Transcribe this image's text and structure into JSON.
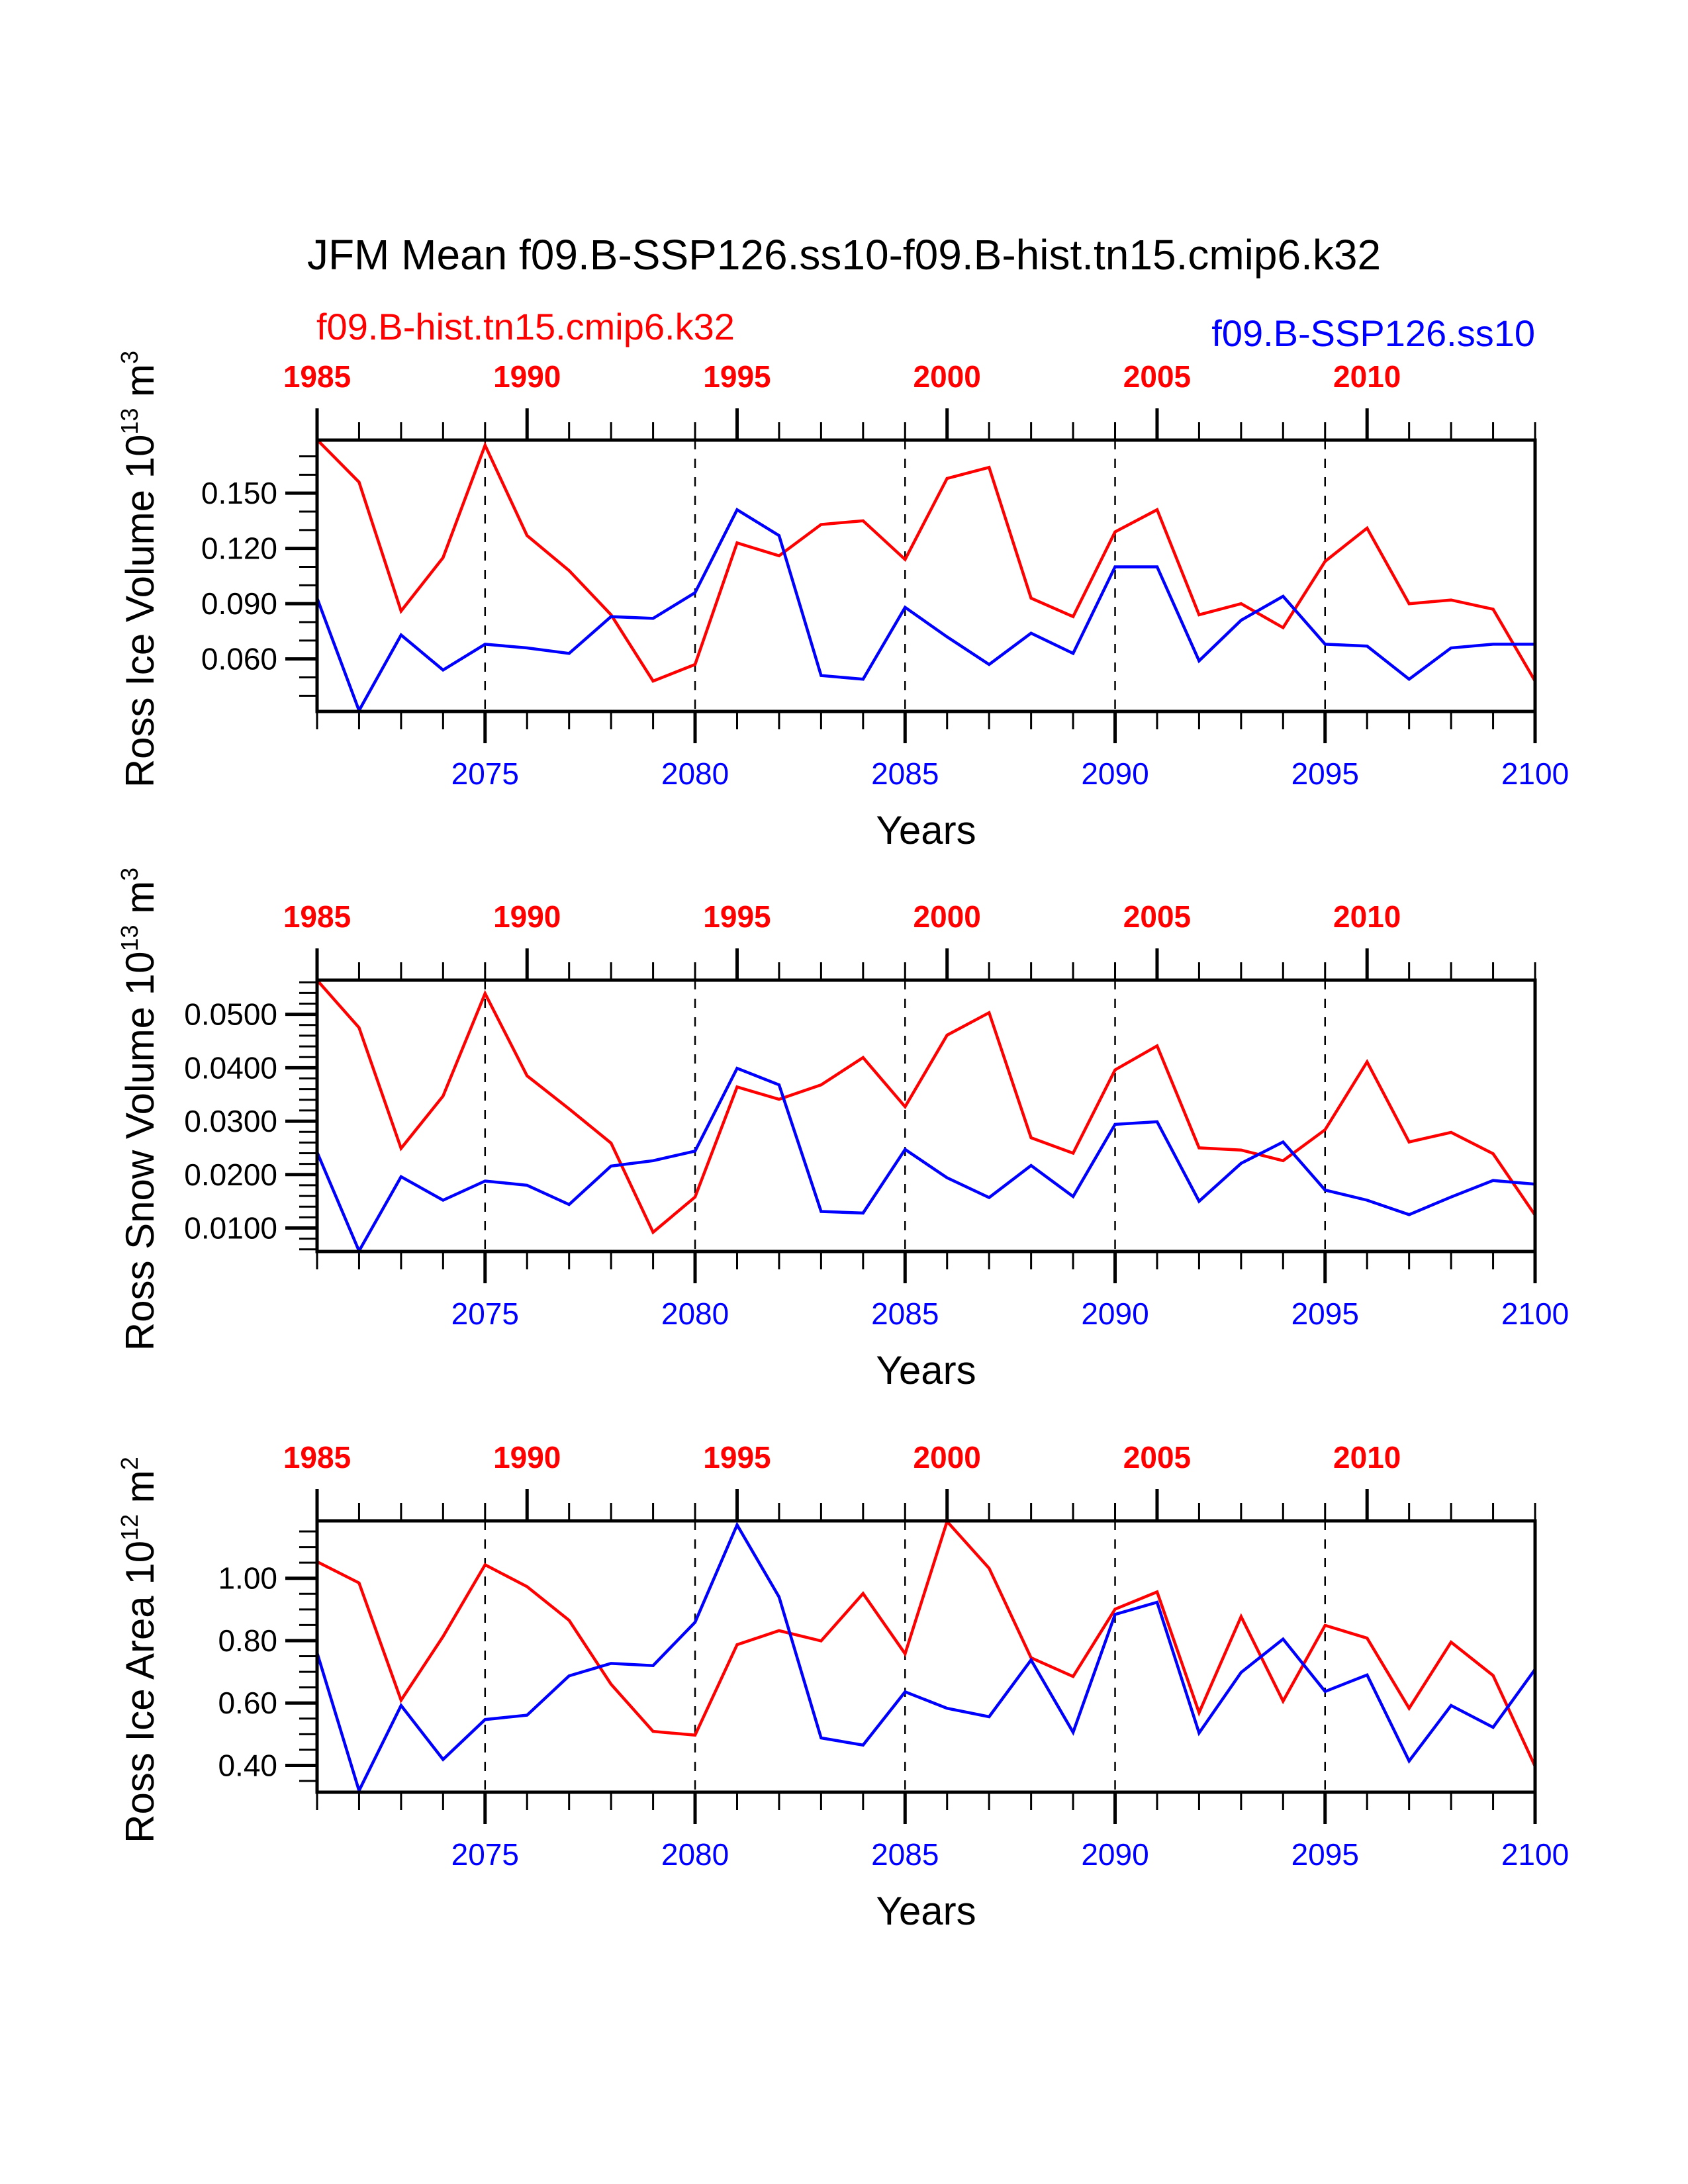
{
  "title": "JFM Mean f09.B-SSP126.ss10-f09.B-hist.tn15.cmip6.k32",
  "legend": {
    "hist_label": "f09.B-hist.tn15.cmip6.k32",
    "ssp_label": "f09.B-SSP126.ss10",
    "hist_color": "#ff0000",
    "ssp_color": "#0000ff"
  },
  "chart_data": [
    {
      "type": "line",
      "title": "",
      "ylabel": "Ross Ice Volume 10^13 m^3",
      "ylabel_main": "Ross Ice Volume 10",
      "ylabel_exp": "13",
      "ylabel_unit": " m",
      "ylabel_unit_exp": "3",
      "xlabel": "Years",
      "ylim": [
        0.0315,
        0.1788
      ],
      "yticks": [
        0.06,
        0.09,
        0.12,
        0.15
      ],
      "ytick_labels": [
        "0.060",
        "0.090",
        "0.120",
        "0.150"
      ],
      "yminor_step": 0.01,
      "xlim": [
        2071,
        2100
      ],
      "xticks_bottom": [
        2075,
        2080,
        2085,
        2090,
        2095,
        2100
      ],
      "xticks_top_labels": [
        "1985",
        "1990",
        "1995",
        "2000",
        "2005",
        "2010"
      ],
      "xticks_top_at": [
        2071,
        2076,
        2081,
        2086,
        2091,
        2096
      ],
      "grid": "vertical dashed at bottom major ticks",
      "x": [
        2071,
        2072,
        2073,
        2074,
        2075,
        2076,
        2077,
        2078,
        2079,
        2080,
        2081,
        2082,
        2083,
        2084,
        2085,
        2086,
        2087,
        2088,
        2089,
        2090,
        2091,
        2092,
        2093,
        2094,
        2095,
        2096,
        2097,
        2098,
        2099,
        2100
      ],
      "x_top": [
        1985,
        1986,
        1987,
        1988,
        1989,
        1990,
        1991,
        1992,
        1993,
        1994,
        1995,
        1996,
        1997,
        1998,
        1999,
        2000,
        2001,
        2002,
        2003,
        2004,
        2005,
        2006,
        2007,
        2008,
        2009,
        2010,
        2011,
        2012,
        2013,
        2014
      ],
      "series": [
        {
          "name": "f09.B-hist.tn15.cmip6.k32",
          "color": "#ff0000",
          "values": [
            0.179,
            0.156,
            0.086,
            0.115,
            0.176,
            0.127,
            0.108,
            0.084,
            0.048,
            0.057,
            0.123,
            0.116,
            0.133,
            0.135,
            0.114,
            0.158,
            0.164,
            0.093,
            0.083,
            0.129,
            0.141,
            0.084,
            0.09,
            0.077,
            0.113,
            0.131,
            0.09,
            0.092,
            0.087,
            0.048
          ]
        },
        {
          "name": "f09.B-SSP126.ss10",
          "color": "#0000ff",
          "values": [
            0.093,
            0.032,
            0.073,
            0.054,
            0.068,
            0.066,
            0.063,
            0.083,
            0.082,
            0.096,
            0.141,
            0.127,
            0.051,
            0.049,
            0.088,
            0.072,
            0.057,
            0.074,
            0.063,
            0.11,
            0.11,
            0.059,
            0.081,
            0.094,
            0.068,
            0.067,
            0.049,
            0.066,
            0.068,
            0.068
          ]
        }
      ]
    },
    {
      "type": "line",
      "title": "",
      "ylabel": "Ross Snow Volume 10^13 m^3",
      "ylabel_main": "Ross Snow Volume 10",
      "ylabel_exp": "13",
      "ylabel_unit": " m",
      "ylabel_unit_exp": "3",
      "xlabel": "Years",
      "ylim": [
        0.0056,
        0.0564
      ],
      "yticks": [
        0.01,
        0.02,
        0.03,
        0.04,
        0.05
      ],
      "ytick_labels": [
        "0.0100",
        "0.0200",
        "0.0300",
        "0.0400",
        "0.0500"
      ],
      "yminor_step": 0.002,
      "xlim": [
        2071,
        2100
      ],
      "xticks_bottom": [
        2075,
        2080,
        2085,
        2090,
        2095,
        2100
      ],
      "xticks_top_labels": [
        "1985",
        "1990",
        "1995",
        "2000",
        "2005",
        "2010"
      ],
      "xticks_top_at": [
        2071,
        2076,
        2081,
        2086,
        2091,
        2096
      ],
      "grid": "vertical dashed at bottom major ticks",
      "x": [
        2071,
        2072,
        2073,
        2074,
        2075,
        2076,
        2077,
        2078,
        2079,
        2080,
        2081,
        2082,
        2083,
        2084,
        2085,
        2086,
        2087,
        2088,
        2089,
        2090,
        2091,
        2092,
        2093,
        2094,
        2095,
        2096,
        2097,
        2098,
        2099,
        2100
      ],
      "x_top": [
        1985,
        1986,
        1987,
        1988,
        1989,
        1990,
        1991,
        1992,
        1993,
        1994,
        1995,
        1996,
        1997,
        1998,
        1999,
        2000,
        2001,
        2002,
        2003,
        2004,
        2005,
        2006,
        2007,
        2008,
        2009,
        2010,
        2011,
        2012,
        2013,
        2014
      ],
      "series": [
        {
          "name": "f09.B-hist.tn15.cmip6.k32",
          "color": "#ff0000",
          "values": [
            0.0564,
            0.0475,
            0.0249,
            0.0347,
            0.0539,
            0.0385,
            0.0323,
            0.0259,
            0.0092,
            0.0158,
            0.0364,
            0.0341,
            0.0368,
            0.0419,
            0.0327,
            0.0461,
            0.0503,
            0.0269,
            0.024,
            0.0396,
            0.0441,
            0.025,
            0.0246,
            0.0226,
            0.0284,
            0.0411,
            0.0261,
            0.0279,
            0.0239,
            0.0124
          ]
        },
        {
          "name": "f09.B-SSP126.ss10",
          "color": "#0000ff",
          "values": [
            0.0242,
            0.0057,
            0.0196,
            0.0152,
            0.0188,
            0.018,
            0.0144,
            0.0216,
            0.0226,
            0.0244,
            0.0399,
            0.0368,
            0.0131,
            0.0128,
            0.0247,
            0.0194,
            0.0157,
            0.0217,
            0.0159,
            0.0294,
            0.0299,
            0.015,
            0.0221,
            0.0261,
            0.0171,
            0.0152,
            0.0125,
            0.0158,
            0.0189,
            0.0182
          ]
        }
      ]
    },
    {
      "type": "line",
      "title": "",
      "ylabel": "Ross Ice Area 10^12 m^2",
      "ylabel_main": "Ross Ice Area 10",
      "ylabel_exp": "12",
      "ylabel_unit": " m",
      "ylabel_unit_exp": "2",
      "xlabel": "Years",
      "ylim": [
        0.314,
        1.184
      ],
      "yticks": [
        0.4,
        0.6,
        0.8,
        1.0
      ],
      "ytick_labels": [
        "0.40",
        "0.60",
        "0.80",
        "1.00"
      ],
      "yminor_step": 0.05,
      "xlim": [
        2071,
        2100
      ],
      "xticks_bottom": [
        2075,
        2080,
        2085,
        2090,
        2095,
        2100
      ],
      "xticks_top_labels": [
        "1985",
        "1990",
        "1995",
        "2000",
        "2005",
        "2010"
      ],
      "xticks_top_at": [
        2071,
        2076,
        2081,
        2086,
        2091,
        2096
      ],
      "grid": "vertical dashed at bottom major ticks",
      "x": [
        2071,
        2072,
        2073,
        2074,
        2075,
        2076,
        2077,
        2078,
        2079,
        2080,
        2081,
        2082,
        2083,
        2084,
        2085,
        2086,
        2087,
        2088,
        2089,
        2090,
        2091,
        2092,
        2093,
        2094,
        2095,
        2096,
        2097,
        2098,
        2099,
        2100
      ],
      "x_top": [
        1985,
        1986,
        1987,
        1988,
        1989,
        1990,
        1991,
        1992,
        1993,
        1994,
        1995,
        1996,
        1997,
        1998,
        1999,
        2000,
        2001,
        2002,
        2003,
        2004,
        2005,
        2006,
        2007,
        2008,
        2009,
        2010,
        2011,
        2012,
        2013,
        2014
      ],
      "series": [
        {
          "name": "f09.B-hist.tn15.cmip6.k32",
          "color": "#ff0000",
          "values": [
            1.053,
            0.985,
            0.609,
            0.813,
            1.043,
            0.973,
            0.865,
            0.66,
            0.509,
            0.497,
            0.787,
            0.832,
            0.799,
            0.951,
            0.758,
            1.182,
            1.032,
            0.745,
            0.685,
            0.901,
            0.956,
            0.569,
            0.877,
            0.606,
            0.849,
            0.808,
            0.583,
            0.795,
            0.688,
            0.397
          ]
        },
        {
          "name": "f09.B-SSP126.ss10",
          "color": "#0000ff",
          "values": [
            0.761,
            0.319,
            0.592,
            0.419,
            0.547,
            0.561,
            0.687,
            0.727,
            0.72,
            0.859,
            1.171,
            0.94,
            0.488,
            0.465,
            0.636,
            0.583,
            0.556,
            0.738,
            0.506,
            0.884,
            0.923,
            0.504,
            0.698,
            0.805,
            0.637,
            0.69,
            0.414,
            0.592,
            0.522,
            0.708
          ]
        }
      ]
    }
  ]
}
